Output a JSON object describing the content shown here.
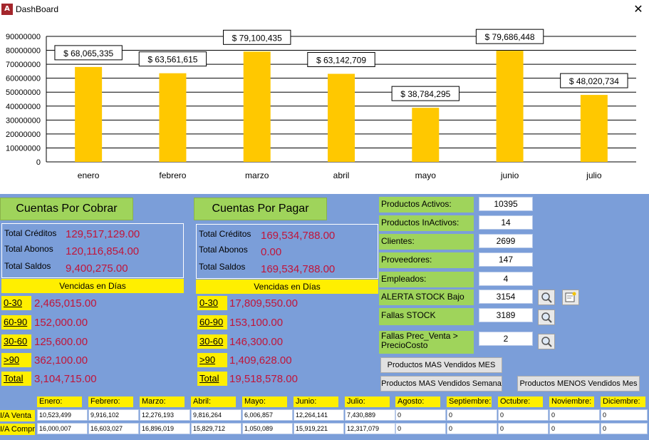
{
  "window": {
    "title": "DashBoard",
    "close_glyph": "✕",
    "app_icon": "access-app-icon",
    "app_icon_glyph": "A"
  },
  "chart_data": {
    "type": "bar",
    "categories": [
      "enero",
      "febrero",
      "marzo",
      "abril",
      "mayo",
      "junio",
      "julio"
    ],
    "values": [
      68065335,
      63561615,
      79100435,
      63142709,
      38784295,
      79686448,
      48020734
    ],
    "data_labels": [
      "$ 68,065,335",
      "$ 63,561,615",
      "$ 79,100,435",
      "$ 63,142,709",
      "$ 38,784,295",
      "$ 79,686,448",
      "$ 48,020,734"
    ],
    "yticks": [
      0,
      10000000,
      20000000,
      30000000,
      40000000,
      50000000,
      60000000,
      70000000,
      80000000,
      90000000
    ],
    "ylim": [
      0,
      90000000
    ],
    "bar_color": "#ffc800",
    "grid": true,
    "legend": "none"
  },
  "cobrar": {
    "header": "Cuentas Por Cobrar",
    "creditos_label": "Total Créditos",
    "creditos": "129,517,129.00",
    "abonos_label": "Total Abonos",
    "abonos": "120,116,854.00",
    "saldos_label": "Total Saldos",
    "saldos": "9,400,275.00",
    "vencidas": "Vencidas en Días",
    "ranges": [
      {
        "label": "0-30",
        "value": "2,465,015.00"
      },
      {
        "label": "60-90",
        "value": "152,000.00"
      },
      {
        "label": "30-60",
        "value": "125,600.00"
      },
      {
        "label": ">90",
        "value": "362,100.00"
      },
      {
        "label": "Total",
        "value": "3,104,715.00"
      }
    ]
  },
  "pagar": {
    "header": "Cuentas Por Pagar",
    "creditos_label": "Total Créditos",
    "creditos": "169,534,788.00",
    "abonos_label": "Total Abonos",
    "abonos": "0.00",
    "saldos_label": "Total Saldos",
    "saldos": "169,534,788.00",
    "vencidas": "Vencidas en Días",
    "ranges": [
      {
        "label": "0-30",
        "value": "17,809,550.00"
      },
      {
        "label": "60-90",
        "value": "153,100.00"
      },
      {
        "label": "30-60",
        "value": "146,300.00"
      },
      {
        "label": ">90",
        "value": "1,409,628.00"
      },
      {
        "label": "Total",
        "value": "19,518,578.00"
      }
    ]
  },
  "side": {
    "items": [
      {
        "label": "Productos Activos:",
        "value": "10395"
      },
      {
        "label": "Productos InActivos:",
        "value": "14"
      },
      {
        "label": "Clientes:",
        "value": "2699"
      },
      {
        "label": "Proveedores:",
        "value": "147"
      },
      {
        "label": "Empleados:",
        "value": "4"
      },
      {
        "label": "ALERTA STOCK Bajo",
        "value": "3154"
      },
      {
        "label": "Fallas STOCK",
        "value": "3189"
      },
      {
        "label": "Fallas Prec_Venta > PrecioCosto",
        "value": "2"
      }
    ],
    "btn_mas_mes": "Productos MAS Vendidos MES",
    "btn_mas_semana": "Productos MAS Vendidos Semana",
    "btn_menos_mes": "Productos MENOS Vendidos Mes"
  },
  "monthly": {
    "months": [
      "Enero:",
      "Febrero:",
      "Marzo:",
      "Abril:",
      "Mayo:",
      "Junio:",
      "Julio:",
      "Agosto:",
      "Septiembre:",
      "Octubre:",
      "Noviembre:",
      "Diciembre:"
    ],
    "venta_label": "I/A Venta",
    "compra_label": "I/A Compra",
    "venta": [
      "10,523,499",
      "9,916,102",
      "12,276,193",
      "9,816,264",
      "6,006,857",
      "12,264,141",
      "7,430,889",
      "0",
      "0",
      "0",
      "0",
      "0"
    ],
    "compra": [
      "16,000,007",
      "16,603,027",
      "16,896,019",
      "15,829,712",
      "1,050,089",
      "15,919,221",
      "12,317,079",
      "0",
      "0",
      "0",
      "0",
      "0"
    ]
  }
}
